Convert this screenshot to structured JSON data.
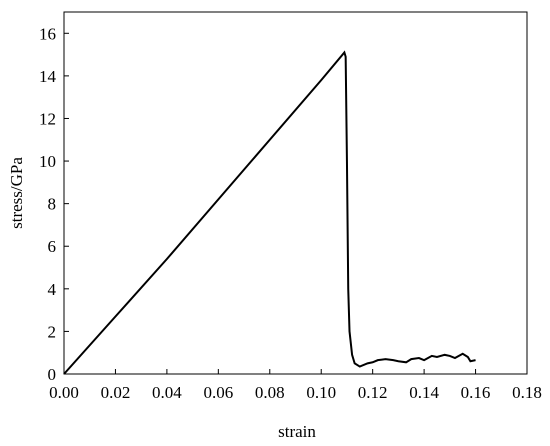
{
  "chart_data": {
    "type": "line",
    "xlabel": "strain",
    "ylabel": "stress/GPa",
    "x": [
      0,
      0.02,
      0.04,
      0.06,
      0.08,
      0.1,
      0.109,
      0.1095,
      0.11,
      0.1105,
      0.111,
      0.112,
      0.113,
      0.115,
      0.118,
      0.12,
      0.122,
      0.125,
      0.128,
      0.13,
      0.133,
      0.135,
      0.138,
      0.14,
      0.143,
      0.145,
      0.148,
      0.15,
      0.152,
      0.155,
      0.157,
      0.158,
      0.16
    ],
    "series": [
      {
        "color": "#000000",
        "values": [
          0,
          2.7,
          5.4,
          8.2,
          11.0,
          13.8,
          15.1,
          14.9,
          10,
          4,
          2,
          0.9,
          0.5,
          0.35,
          0.5,
          0.55,
          0.65,
          0.7,
          0.65,
          0.6,
          0.55,
          0.7,
          0.75,
          0.65,
          0.85,
          0.8,
          0.9,
          0.85,
          0.75,
          0.95,
          0.8,
          0.6,
          0.65
        ]
      }
    ],
    "xlim": [
      0,
      0.18
    ],
    "xticks": [
      {
        "value": 0,
        "label": "0.00"
      },
      0.02,
      0.04,
      0.06,
      0.08,
      {
        "value": 0.1,
        "label": "0.10"
      },
      0.12,
      0.14,
      0.16,
      0.18
    ],
    "ylim": [
      0,
      17
    ],
    "yticks": [
      0,
      2,
      4,
      6,
      8,
      10,
      12,
      14,
      16
    ]
  }
}
